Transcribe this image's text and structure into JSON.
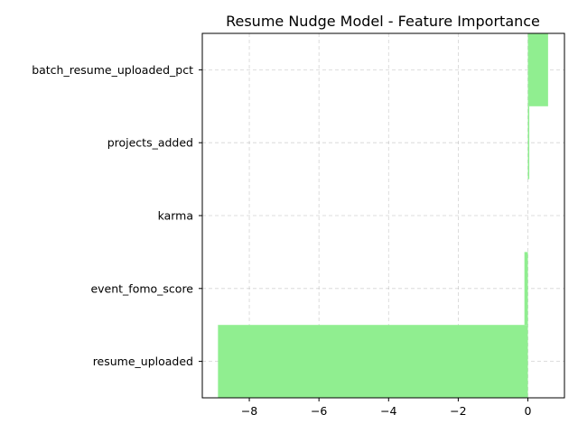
{
  "chart_data": {
    "type": "bar",
    "orientation": "horizontal",
    "title": "Resume Nudge Model - Feature Importance",
    "xlabel": "",
    "ylabel": "",
    "categories": [
      "resume_uploaded",
      "event_fomo_score",
      "karma",
      "projects_added",
      "batch_resume_uploaded_pct"
    ],
    "values": [
      -8.9,
      -0.1,
      0.0,
      0.04,
      0.58
    ],
    "xlim": [
      -9.35,
      1.05
    ],
    "xticks": [
      -8,
      -6,
      -4,
      -2,
      0
    ],
    "xtick_labels": [
      "−8",
      "−6",
      "−4",
      "−2",
      "0"
    ],
    "grid": true,
    "bar_color": "#90ee90",
    "legend": "none"
  }
}
